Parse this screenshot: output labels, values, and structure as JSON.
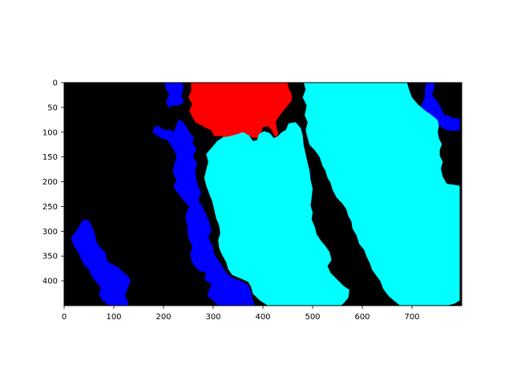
{
  "chart_data": {
    "type": "heatmap",
    "title": "",
    "xlabel": "",
    "ylabel": "",
    "xlim": [
      0,
      800
    ],
    "ylim": [
      450,
      0
    ],
    "y_axis_inverted": true,
    "grid": false,
    "legend": "none",
    "x_ticks": [
      "0",
      "100",
      "200",
      "300",
      "400",
      "500",
      "600",
      "700"
    ],
    "y_ticks": [
      "0",
      "50",
      "100",
      "150",
      "200",
      "250",
      "300",
      "350",
      "400"
    ],
    "x_tick_values": [
      0,
      100,
      200,
      300,
      400,
      500,
      600,
      700
    ],
    "y_tick_values": [
      0,
      50,
      100,
      150,
      200,
      250,
      300,
      350,
      400
    ],
    "colors": {
      "background": "#000000",
      "blue": "#0000ff",
      "red": "#ff0000",
      "cyan": "#00ffff"
    },
    "regions": [
      {
        "color": "blue",
        "points": [
          [
            202,
            0
          ],
          [
            238,
            0
          ],
          [
            240,
            12
          ],
          [
            236,
            28
          ],
          [
            242,
            38
          ],
          [
            232,
            46
          ],
          [
            222,
            46
          ],
          [
            210,
            50
          ],
          [
            205,
            38
          ],
          [
            212,
            24
          ],
          [
            204,
            12
          ]
        ]
      },
      {
        "color": "blue",
        "points": [
          [
            180,
            92
          ],
          [
            188,
            86
          ],
          [
            194,
            92
          ],
          [
            204,
            96
          ],
          [
            212,
            94
          ],
          [
            220,
            100
          ],
          [
            225,
            88
          ],
          [
            230,
            74
          ],
          [
            240,
            80
          ],
          [
            248,
            92
          ],
          [
            254,
            104
          ],
          [
            262,
            110
          ],
          [
            258,
            120
          ],
          [
            266,
            134
          ],
          [
            260,
            150
          ],
          [
            268,
            164
          ],
          [
            264,
            176
          ],
          [
            266,
            196
          ],
          [
            270,
            210
          ],
          [
            276,
            222
          ],
          [
            270,
            236
          ],
          [
            278,
            250
          ],
          [
            284,
            262
          ],
          [
            292,
            280
          ],
          [
            296,
            300
          ],
          [
            290,
            312
          ],
          [
            296,
            324
          ],
          [
            300,
            334
          ],
          [
            302,
            346
          ],
          [
            310,
            358
          ],
          [
            318,
            370
          ],
          [
            325,
            382
          ],
          [
            338,
            394
          ],
          [
            356,
            400
          ],
          [
            370,
            408
          ],
          [
            375,
            420
          ],
          [
            380,
            440
          ],
          [
            384,
            450
          ],
          [
            310,
            450
          ],
          [
            300,
            440
          ],
          [
            288,
            430
          ],
          [
            292,
            418
          ],
          [
            296,
            406
          ],
          [
            282,
            398
          ],
          [
            286,
            384
          ],
          [
            272,
            380
          ],
          [
            262,
            370
          ],
          [
            256,
            360
          ],
          [
            254,
            346
          ],
          [
            258,
            330
          ],
          [
            252,
            318
          ],
          [
            248,
            304
          ],
          [
            248,
            288
          ],
          [
            244,
            276
          ],
          [
            246,
            262
          ],
          [
            252,
            250
          ],
          [
            240,
            238
          ],
          [
            228,
            222
          ],
          [
            220,
            210
          ],
          [
            226,
            196
          ],
          [
            218,
            180
          ],
          [
            222,
            164
          ],
          [
            226,
            150
          ],
          [
            222,
            138
          ],
          [
            214,
            126
          ],
          [
            208,
            116
          ],
          [
            196,
            112
          ],
          [
            186,
            106
          ],
          [
            178,
            100
          ]
        ]
      },
      {
        "color": "blue",
        "points": [
          [
            14,
            312
          ],
          [
            24,
            300
          ],
          [
            30,
            290
          ],
          [
            38,
            276
          ],
          [
            50,
            278
          ],
          [
            56,
            290
          ],
          [
            62,
            304
          ],
          [
            64,
            318
          ],
          [
            70,
            330
          ],
          [
            84,
            344
          ],
          [
            86,
            360
          ],
          [
            96,
            366
          ],
          [
            108,
            372
          ],
          [
            116,
            380
          ],
          [
            126,
            388
          ],
          [
            134,
            398
          ],
          [
            130,
            410
          ],
          [
            126,
            420
          ],
          [
            122,
            430
          ],
          [
            128,
            440
          ],
          [
            130,
            450
          ],
          [
            90,
            450
          ],
          [
            76,
            438
          ],
          [
            70,
            426
          ],
          [
            74,
            414
          ],
          [
            66,
            404
          ],
          [
            56,
            392
          ],
          [
            50,
            378
          ],
          [
            40,
            368
          ],
          [
            34,
            356
          ],
          [
            28,
            342
          ],
          [
            20,
            330
          ],
          [
            16,
            320
          ]
        ]
      },
      {
        "color": "blue",
        "points": [
          [
            730,
            0
          ],
          [
            746,
            0
          ],
          [
            744,
            14
          ],
          [
            740,
            26
          ],
          [
            750,
            36
          ],
          [
            758,
            50
          ],
          [
            764,
            64
          ],
          [
            776,
            68
          ],
          [
            782,
            72
          ],
          [
            796,
            72
          ],
          [
            796,
            96
          ],
          [
            784,
            98
          ],
          [
            770,
            96
          ],
          [
            760,
            90
          ],
          [
            752,
            84
          ],
          [
            742,
            76
          ],
          [
            734,
            70
          ],
          [
            722,
            62
          ],
          [
            716,
            50
          ],
          [
            722,
            40
          ],
          [
            726,
            26
          ],
          [
            726,
            10
          ]
        ]
      },
      {
        "color": "red",
        "points": [
          [
            255,
            0
          ],
          [
            450,
            0
          ],
          [
            452,
            12
          ],
          [
            458,
            24
          ],
          [
            458,
            36
          ],
          [
            450,
            46
          ],
          [
            442,
            56
          ],
          [
            434,
            66
          ],
          [
            426,
            78
          ],
          [
            428,
            94
          ],
          [
            432,
            104
          ],
          [
            424,
            110
          ],
          [
            418,
            96
          ],
          [
            410,
            88
          ],
          [
            400,
            90
          ],
          [
            396,
            104
          ],
          [
            388,
            112
          ],
          [
            376,
            110
          ],
          [
            370,
            104
          ],
          [
            358,
            102
          ],
          [
            346,
            112
          ],
          [
            330,
            114
          ],
          [
            316,
            108
          ],
          [
            302,
            108
          ],
          [
            296,
            96
          ],
          [
            286,
            92
          ],
          [
            276,
            86
          ],
          [
            264,
            80
          ],
          [
            258,
            70
          ],
          [
            252,
            56
          ],
          [
            258,
            44
          ],
          [
            250,
            30
          ],
          [
            256,
            16
          ]
        ]
      },
      {
        "color": "cyan",
        "points": [
          [
            482,
            0
          ],
          [
            690,
            0
          ],
          [
            694,
            14
          ],
          [
            700,
            30
          ],
          [
            712,
            44
          ],
          [
            726,
            56
          ],
          [
            740,
            66
          ],
          [
            752,
            76
          ],
          [
            754,
            88
          ],
          [
            752,
            100
          ],
          [
            754,
            112
          ],
          [
            760,
            124
          ],
          [
            756,
            136
          ],
          [
            756,
            148
          ],
          [
            762,
            160
          ],
          [
            758,
            174
          ],
          [
            762,
            190
          ],
          [
            770,
            204
          ],
          [
            782,
            206
          ],
          [
            796,
            208
          ],
          [
            796,
            440
          ],
          [
            786,
            446
          ],
          [
            770,
            450
          ],
          [
            676,
            450
          ],
          [
            654,
            432
          ],
          [
            642,
            416
          ],
          [
            636,
            400
          ],
          [
            630,
            392
          ],
          [
            620,
            378
          ],
          [
            614,
            362
          ],
          [
            608,
            350
          ],
          [
            604,
            338
          ],
          [
            594,
            326
          ],
          [
            588,
            308
          ],
          [
            580,
            294
          ],
          [
            578,
            280
          ],
          [
            572,
            270
          ],
          [
            568,
            256
          ],
          [
            560,
            244
          ],
          [
            548,
            232
          ],
          [
            540,
            216
          ],
          [
            536,
            202
          ],
          [
            530,
            192
          ],
          [
            526,
            178
          ],
          [
            520,
            168
          ],
          [
            514,
            150
          ],
          [
            504,
            136
          ],
          [
            494,
            126
          ],
          [
            490,
            112
          ],
          [
            486,
            96
          ],
          [
            490,
            80
          ],
          [
            484,
            66
          ],
          [
            488,
            46
          ],
          [
            480,
            30
          ],
          [
            486,
            14
          ]
        ]
      },
      {
        "color": "cyan",
        "points": [
          [
            308,
            118
          ],
          [
            320,
            110
          ],
          [
            334,
            108
          ],
          [
            348,
            104
          ],
          [
            360,
            100
          ],
          [
            372,
            106
          ],
          [
            380,
            118
          ],
          [
            388,
            116
          ],
          [
            392,
            104
          ],
          [
            402,
            98
          ],
          [
            414,
            102
          ],
          [
            422,
            112
          ],
          [
            430,
            108
          ],
          [
            438,
            100
          ],
          [
            446,
            96
          ],
          [
            452,
            82
          ],
          [
            466,
            80
          ],
          [
            476,
            92
          ],
          [
            480,
            106
          ],
          [
            482,
            126
          ],
          [
            486,
            144
          ],
          [
            490,
            162
          ],
          [
            494,
            178
          ],
          [
            496,
            196
          ],
          [
            500,
            214
          ],
          [
            498,
            232
          ],
          [
            496,
            248
          ],
          [
            500,
            262
          ],
          [
            498,
            276
          ],
          [
            504,
            290
          ],
          [
            508,
            306
          ],
          [
            516,
            318
          ],
          [
            526,
            330
          ],
          [
            534,
            342
          ],
          [
            538,
            358
          ],
          [
            530,
            370
          ],
          [
            536,
            384
          ],
          [
            548,
            396
          ],
          [
            562,
            410
          ],
          [
            574,
            418
          ],
          [
            572,
            434
          ],
          [
            562,
            446
          ],
          [
            556,
            450
          ],
          [
            410,
            450
          ],
          [
            394,
            440
          ],
          [
            380,
            426
          ],
          [
            376,
            412
          ],
          [
            370,
            402
          ],
          [
            352,
            394
          ],
          [
            338,
            388
          ],
          [
            330,
            376
          ],
          [
            326,
            362
          ],
          [
            318,
            348
          ],
          [
            312,
            334
          ],
          [
            310,
            318
          ],
          [
            314,
            304
          ],
          [
            312,
            288
          ],
          [
            306,
            274
          ],
          [
            302,
            256
          ],
          [
            298,
            240
          ],
          [
            292,
            224
          ],
          [
            286,
            208
          ],
          [
            282,
            192
          ],
          [
            286,
            176
          ],
          [
            290,
            160
          ],
          [
            286,
            144
          ],
          [
            298,
            130
          ]
        ]
      }
    ]
  }
}
